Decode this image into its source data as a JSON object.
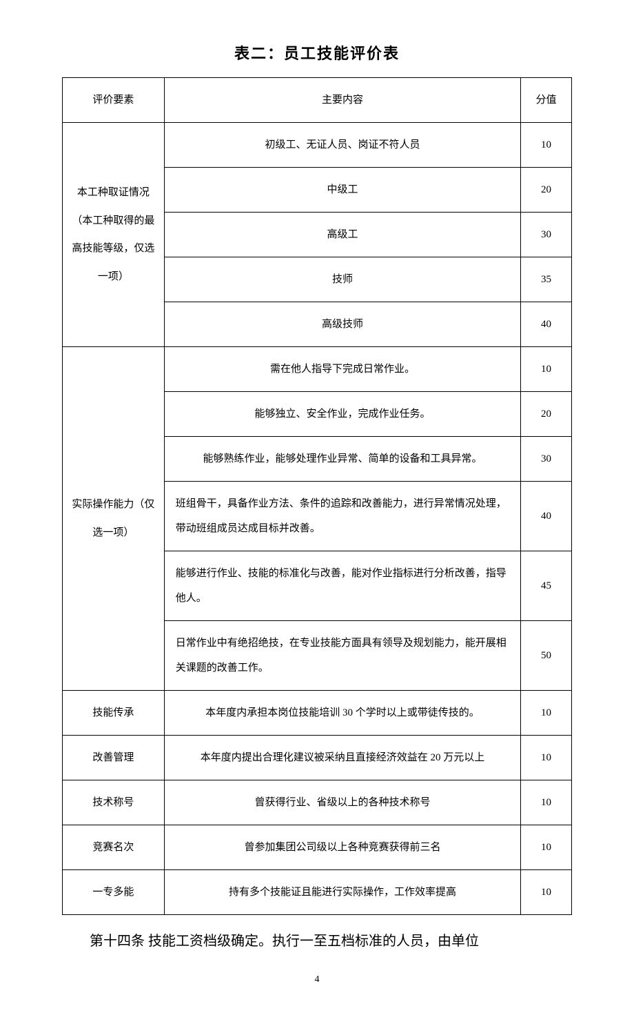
{
  "title": "表二：员工技能评价表",
  "headers": {
    "col1": "评价要素",
    "col2": "主要内容",
    "col3": "分值"
  },
  "sections": {
    "cert": {
      "label": "本工种取证情况（本工种取得的最高技能等级，仅选一项）",
      "rows": [
        {
          "content": "初级工、无证人员、岗证不符人员",
          "score": "10"
        },
        {
          "content": "中级工",
          "score": "20"
        },
        {
          "content": "高级工",
          "score": "30"
        },
        {
          "content": "技师",
          "score": "35"
        },
        {
          "content": "高级技师",
          "score": "40"
        }
      ]
    },
    "ability": {
      "label": "实际操作能力（仅选一项）",
      "rows": [
        {
          "content": "需在他人指导下完成日常作业。",
          "score": "10"
        },
        {
          "content": "能够独立、安全作业，完成作业任务。",
          "score": "20"
        },
        {
          "content": "能够熟练作业，能够处理作业异常、简单的设备和工具异常。",
          "score": "30"
        },
        {
          "content": "班组骨干，具备作业方法、条件的追踪和改善能力，进行异常情况处理，带动班组成员达成目标并改善。",
          "score": "40"
        },
        {
          "content": "能够进行作业、技能的标准化与改善，能对作业指标进行分析改善，指导他人。",
          "score": "45"
        },
        {
          "content": "日常作业中有绝招绝技，在专业技能方面具有领导及规划能力，能开展相关课题的改善工作。",
          "score": "50"
        }
      ]
    },
    "single": [
      {
        "label": "技能传承",
        "content": "本年度内承担本岗位技能培训 30 个学时以上或带徒传技的。",
        "score": "10"
      },
      {
        "label": "改善管理",
        "content": "本年度内提出合理化建议被采纳且直接经济效益在 20 万元以上",
        "score": "10"
      },
      {
        "label": "技术称号",
        "content": "曾获得行业、省级以上的各种技术称号",
        "score": "10"
      },
      {
        "label": "竞赛名次",
        "content": "曾参加集团公司级以上各种竞赛获得前三名",
        "score": "10"
      },
      {
        "label": "一专多能",
        "content": "持有多个技能证且能进行实际操作，工作效率提高",
        "score": "10"
      }
    ]
  },
  "bottom_text": "第十四条 技能工资档级确定。执行一至五档标准的人员，由单位",
  "page_number": "4",
  "style": {
    "col_widths": [
      "20%",
      "70%",
      "10%"
    ],
    "body_bg": "#ffffff",
    "text_color": "#000000",
    "border_color": "#000000",
    "title_fontsize": 22,
    "cell_fontsize": 15,
    "bottom_fontsize": 20
  }
}
